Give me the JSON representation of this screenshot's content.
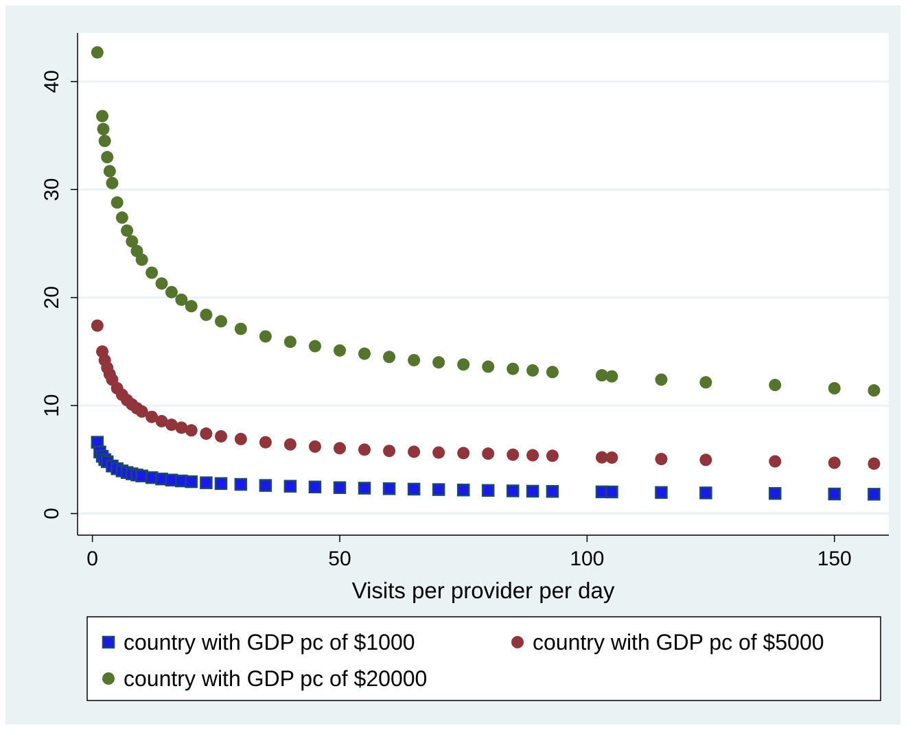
{
  "chart_data": {
    "type": "scatter",
    "title": "",
    "xlabel": "Visits per provider per day",
    "ylabel": "",
    "xlim": [
      -3,
      161
    ],
    "ylim": [
      -2,
      44.5
    ],
    "x_ticks": [
      0,
      50,
      100,
      150
    ],
    "y_ticks": [
      0,
      10,
      20,
      30,
      40
    ],
    "grid": "horizontal",
    "legend_position": "bottom",
    "series": [
      {
        "name": "country with GDP pc of $1000",
        "marker": "square",
        "color": "#1a1ae6",
        "edge_color": "#1a476f",
        "x": [
          1,
          1.5,
          2,
          2.5,
          3,
          4,
          5,
          6,
          7,
          8,
          9,
          10,
          12,
          14,
          16,
          18,
          20,
          23,
          26,
          30,
          35,
          40,
          45,
          50,
          55,
          60,
          65,
          70,
          75,
          80,
          85,
          89,
          93,
          103,
          105,
          115,
          124,
          138,
          150,
          158
        ],
        "y": [
          6.6,
          5.7,
          5.3,
          5.0,
          4.8,
          4.4,
          4.15,
          3.95,
          3.8,
          3.68,
          3.57,
          3.48,
          3.33,
          3.2,
          3.1,
          3.02,
          2.95,
          2.85,
          2.78,
          2.7,
          2.6,
          2.53,
          2.46,
          2.4,
          2.35,
          2.3,
          2.26,
          2.22,
          2.18,
          2.14,
          2.1,
          2.07,
          2.05,
          2.01,
          2.0,
          1.95,
          1.91,
          1.86,
          1.81,
          1.79
        ]
      },
      {
        "name": "country with GDP pc of $5000",
        "marker": "circle",
        "color": "#90353b",
        "x": [
          1,
          2,
          2.5,
          3,
          3.5,
          4,
          5,
          6,
          7,
          8,
          9,
          10,
          12,
          14,
          16,
          18,
          20,
          23,
          26,
          30,
          35,
          40,
          45,
          50,
          55,
          60,
          65,
          70,
          75,
          80,
          85,
          89,
          93,
          103,
          105,
          115,
          124,
          138,
          150,
          158
        ],
        "y": [
          17.4,
          15.0,
          14.2,
          13.5,
          12.9,
          12.4,
          11.6,
          11.0,
          10.5,
          10.1,
          9.75,
          9.45,
          8.95,
          8.55,
          8.22,
          7.95,
          7.7,
          7.4,
          7.15,
          6.9,
          6.6,
          6.4,
          6.2,
          6.05,
          5.92,
          5.8,
          5.72,
          5.65,
          5.6,
          5.55,
          5.45,
          5.4,
          5.35,
          5.2,
          5.18,
          5.05,
          4.97,
          4.83,
          4.7,
          4.62
        ]
      },
      {
        "name": "country with GDP pc of $20000",
        "marker": "circle",
        "color": "#55752f",
        "x": [
          1,
          2,
          2.2,
          2.5,
          3,
          3.5,
          4,
          5,
          6,
          7,
          8,
          9,
          10,
          12,
          14,
          16,
          18,
          20,
          23,
          26,
          30,
          35,
          40,
          45,
          50,
          55,
          60,
          65,
          70,
          75,
          80,
          85,
          89,
          93,
          103,
          105,
          115,
          124,
          138,
          150,
          158
        ],
        "y": [
          42.7,
          36.8,
          35.6,
          34.5,
          33.0,
          31.7,
          30.6,
          28.8,
          27.4,
          26.2,
          25.2,
          24.3,
          23.5,
          22.3,
          21.3,
          20.5,
          19.8,
          19.2,
          18.4,
          17.8,
          17.1,
          16.4,
          15.9,
          15.5,
          15.1,
          14.8,
          14.5,
          14.2,
          14.0,
          13.8,
          13.6,
          13.4,
          13.25,
          13.1,
          12.8,
          12.7,
          12.4,
          12.15,
          11.9,
          11.6,
          11.4
        ]
      }
    ]
  }
}
